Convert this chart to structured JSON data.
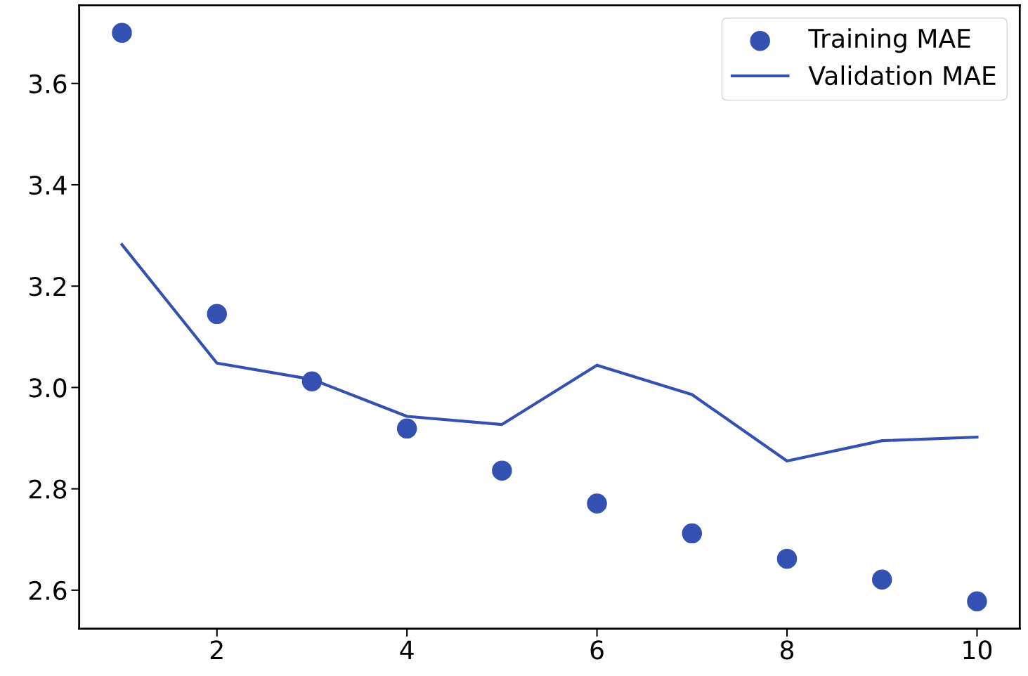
{
  "chart_data": {
    "type": "line",
    "x": [
      1,
      2,
      3,
      4,
      5,
      6,
      7,
      8,
      9,
      10
    ],
    "series": [
      {
        "name": "Training MAE",
        "type": "scatter",
        "color": "#3451b2",
        "marker": "circle",
        "values": [
          3.7,
          3.145,
          3.012,
          2.919,
          2.836,
          2.771,
          2.712,
          2.662,
          2.621,
          2.578
        ]
      },
      {
        "name": "Validation MAE",
        "color": "#3451b2",
        "line_style": "solid",
        "values": [
          3.282,
          3.048,
          3.016,
          2.943,
          2.927,
          3.044,
          2.986,
          2.855,
          2.895,
          2.902
        ]
      }
    ],
    "xlim": [
      0.55,
      10.45
    ],
    "ylim": [
      2.524,
      3.754
    ],
    "xticks": [
      2,
      4,
      6,
      8,
      10
    ],
    "yticks": [
      {
        "value": 2.6,
        "label": "2.6"
      },
      {
        "value": 2.8,
        "label": "2.8"
      },
      {
        "value": 3.0,
        "label": "3.0"
      },
      {
        "value": 3.2,
        "label": "3.2"
      },
      {
        "value": 3.4,
        "label": "3.4"
      },
      {
        "value": 3.6,
        "label": "3.6"
      }
    ],
    "grid": false,
    "legend": "top right"
  }
}
